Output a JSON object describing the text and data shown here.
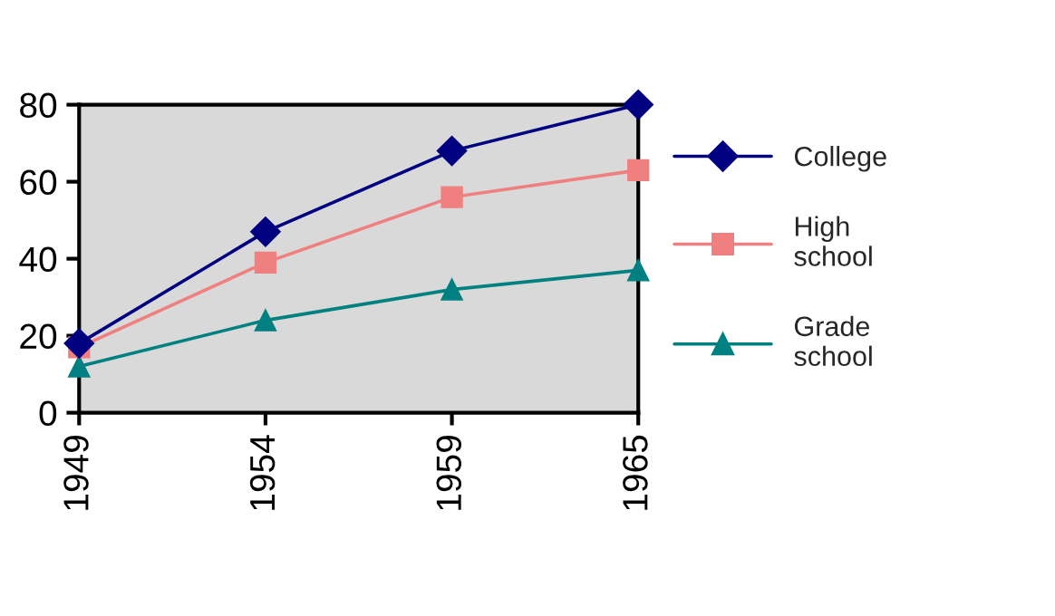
{
  "chart_data": {
    "type": "line",
    "categories": [
      "1949",
      "1954",
      "1959",
      "1965"
    ],
    "series": [
      {
        "name": "College",
        "color": "#000080",
        "marker": "diamond",
        "values": [
          18,
          47,
          68,
          80
        ]
      },
      {
        "name": "High\nschool",
        "color": "#f08080",
        "marker": "square",
        "values": [
          17,
          39,
          56,
          63
        ]
      },
      {
        "name": "Grade\nschool",
        "color": "#008080",
        "marker": "triangle",
        "values": [
          12,
          24,
          32,
          37
        ]
      }
    ],
    "ylim": [
      0,
      80
    ],
    "yticks": [
      0,
      20,
      40,
      60,
      80
    ],
    "grid": false,
    "legend": "right",
    "line_style": "solid"
  }
}
